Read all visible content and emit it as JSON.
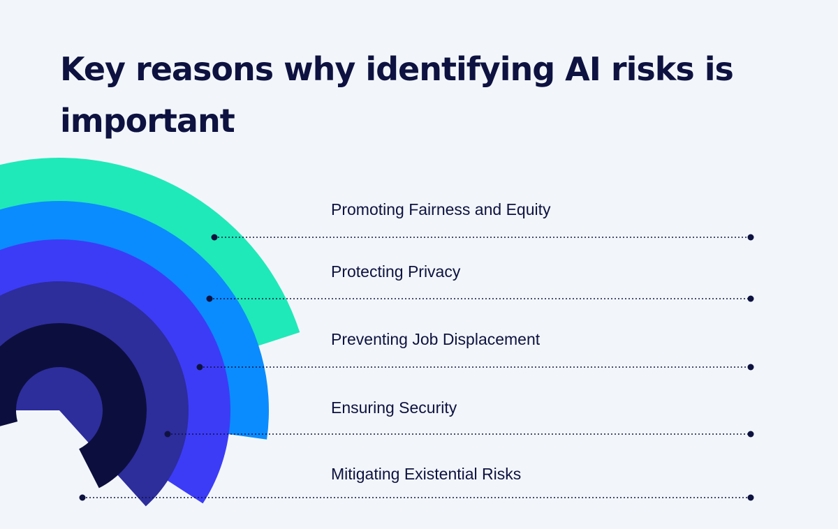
{
  "title": {
    "line1": "Key reasons why identifying AI risks is",
    "line2": "important"
  },
  "items": [
    {
      "label": "Promoting Fairness and Equity",
      "color": "#1fe9b8"
    },
    {
      "label": "Protecting Privacy",
      "color": "#0a8cff"
    },
    {
      "label": "Preventing Job Displacement",
      "color": "#3c3cf7"
    },
    {
      "label": "Ensuring Security",
      "color": "#2d2d9c"
    },
    {
      "label": "Mitigating Existential Risks",
      "color": "#0c0f3d"
    }
  ],
  "colors": {
    "background": "#f2f6fa",
    "text": "#0e1240",
    "leader_line": "#0e1240"
  }
}
